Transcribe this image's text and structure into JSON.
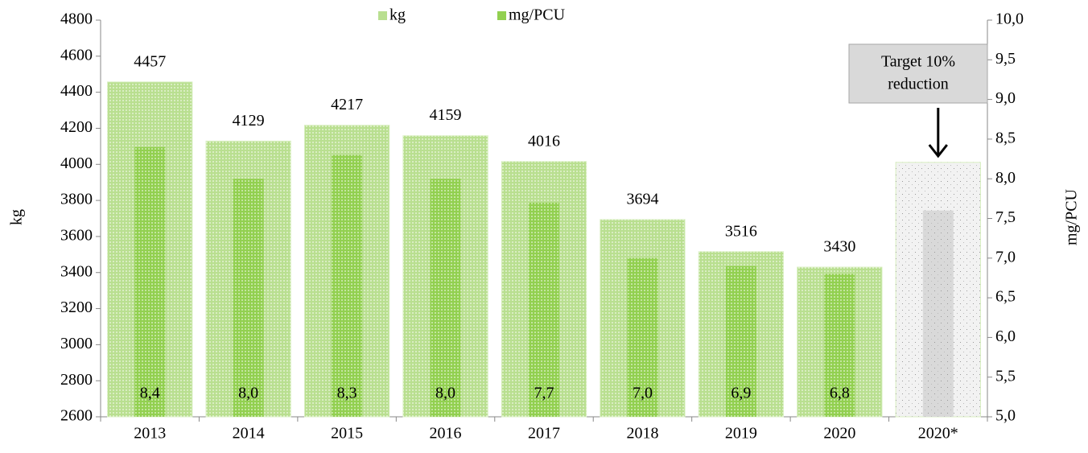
{
  "chart_data": {
    "type": "bar",
    "categories": [
      "2013",
      "2014",
      "2015",
      "2016",
      "2017",
      "2018",
      "2019",
      "2020",
      "2020*"
    ],
    "ylabel": "kg",
    "y2label": "mg/PCU",
    "ylim": [
      2600,
      4800
    ],
    "yticks": [
      2600,
      2800,
      3000,
      3200,
      3400,
      3600,
      3800,
      4000,
      4200,
      4400,
      4600,
      4800
    ],
    "y2lim": [
      5,
      10
    ],
    "y2ticks": [
      {
        "value": 5,
        "label": "5,0"
      },
      {
        "value": 5.5,
        "label": "5,5"
      },
      {
        "value": 6,
        "label": "6,0"
      },
      {
        "value": 6.5,
        "label": "6,5"
      },
      {
        "value": 7,
        "label": "7,0"
      },
      {
        "value": 7.5,
        "label": "7,5"
      },
      {
        "value": 8,
        "label": "8,0"
      },
      {
        "value": 8.5,
        "label": "8,5"
      },
      {
        "value": 9,
        "label": "9,0"
      },
      {
        "value": 9.5,
        "label": "9,5"
      },
      {
        "value": 10,
        "label": "10,0"
      }
    ],
    "series": [
      {
        "name": "kg",
        "color": "#b9df90",
        "colors": [
          "#b9df90",
          "#b9df90",
          "#b9df90",
          "#b9df90",
          "#b9df90",
          "#b9df90",
          "#b9df90",
          "#b9df90",
          "#f2f2f2"
        ],
        "values": [
          4457,
          4129,
          4217,
          4159,
          4016,
          3694,
          3516,
          3430,
          4011
        ],
        "value_labels": [
          "4457",
          "4129",
          "4217",
          "4159",
          "4016",
          "3694",
          "3516",
          "3430",
          null
        ]
      },
      {
        "name": "mg/PCU",
        "axis": "y2",
        "color": "#92d050",
        "colors": [
          "#92d050",
          "#92d050",
          "#92d050",
          "#92d050",
          "#92d050",
          "#92d050",
          "#92d050",
          "#92d050",
          "#d9d9d9"
        ],
        "values": [
          8.4,
          8.0,
          8.3,
          8.0,
          7.7,
          7.0,
          6.9,
          6.8,
          7.6
        ],
        "value_labels": [
          "8,4",
          "8,0",
          "8,3",
          "8,0",
          "7,7",
          "7,0",
          "6,9",
          "6,8",
          null
        ]
      }
    ],
    "annotation": [
      "Target 10%",
      "reduction"
    ],
    "legend": "top"
  }
}
